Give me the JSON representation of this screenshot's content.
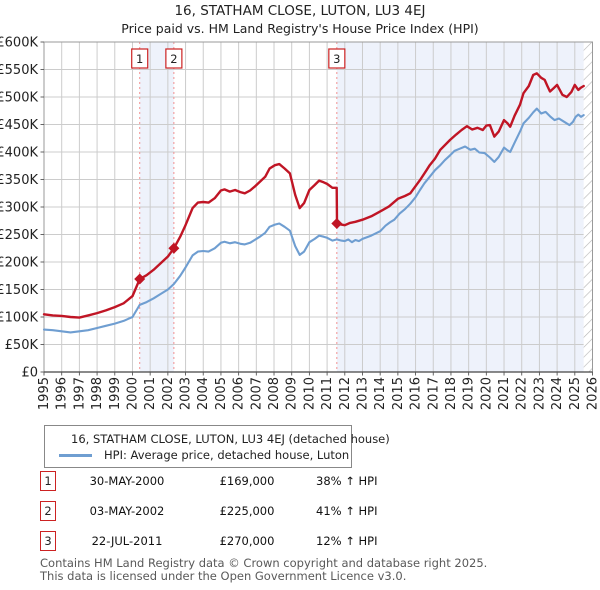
{
  "title": "16, STATHAM CLOSE, LUTON, LU3 4EJ",
  "subtitle": "Price paid vs. HM Land Registry's House Price Index (HPI)",
  "colors": {
    "property_line": "#c01525",
    "hpi_line": "#6f9ed1",
    "marker_dashed": "#f29090",
    "shade": "#eef2fb",
    "grid": "#cccccc",
    "frame": "#999999",
    "axis_bottom": "#444444",
    "hatch_line": "#b5b5b5",
    "marker_box_border": "#cc2222",
    "tick_text": "#222222"
  },
  "chart_data": {
    "type": "line",
    "title": "16, STATHAM CLOSE, LUTON, LU3 4EJ",
    "subtitle": "Price paid vs. HM Land Registry's House Price Index (HPI)",
    "unit": "GBP thousands",
    "x_range": [
      1995,
      2026
    ],
    "x_ticks": [
      1995,
      1996,
      1997,
      1998,
      1999,
      2000,
      2001,
      2002,
      2003,
      2004,
      2005,
      2006,
      2007,
      2008,
      2009,
      2010,
      2011,
      2012,
      2013,
      2014,
      2015,
      2016,
      2017,
      2018,
      2019,
      2020,
      2021,
      2022,
      2023,
      2024,
      2025,
      2026
    ],
    "ylim": [
      0,
      600
    ],
    "y_tick_step": 50,
    "y_tick_labels": [
      "£0",
      "£50K",
      "£100K",
      "£150K",
      "£200K",
      "£250K",
      "£300K",
      "£350K",
      "£400K",
      "£450K",
      "£500K",
      "£550K",
      "£600K"
    ],
    "grid": true,
    "legend_position": "below",
    "shaded_spans": [
      [
        2000.41,
        2002.34
      ],
      [
        2011.55,
        2026
      ]
    ],
    "hatch_span": [
      2025.5,
      2026
    ],
    "series": [
      {
        "name": "16, STATHAM CLOSE, LUTON, LU3 4EJ (detached house)",
        "color": "#c01525",
        "points": [
          [
            1995.0,
            105
          ],
          [
            1995.5,
            103
          ],
          [
            1996.0,
            102
          ],
          [
            1996.5,
            100
          ],
          [
            1997.0,
            99
          ],
          [
            1997.5,
            103
          ],
          [
            1998.0,
            107
          ],
          [
            1998.5,
            112
          ],
          [
            1999.0,
            118
          ],
          [
            1999.5,
            125
          ],
          [
            2000.0,
            138
          ],
          [
            2000.41,
            169
          ],
          [
            2000.8,
            176
          ],
          [
            2001.2,
            186
          ],
          [
            2001.6,
            198
          ],
          [
            2002.0,
            210
          ],
          [
            2002.34,
            225
          ],
          [
            2002.7,
            246
          ],
          [
            2003.0,
            267
          ],
          [
            2003.4,
            298
          ],
          [
            2003.7,
            308
          ],
          [
            2004.0,
            309
          ],
          [
            2004.3,
            308
          ],
          [
            2004.65,
            316
          ],
          [
            2005.0,
            330
          ],
          [
            2005.2,
            332
          ],
          [
            2005.5,
            328
          ],
          [
            2005.8,
            331
          ],
          [
            2006.1,
            327
          ],
          [
            2006.35,
            325
          ],
          [
            2006.65,
            330
          ],
          [
            2006.9,
            337
          ],
          [
            2007.2,
            346
          ],
          [
            2007.5,
            355
          ],
          [
            2007.75,
            370
          ],
          [
            2008.05,
            376
          ],
          [
            2008.3,
            378
          ],
          [
            2008.6,
            370
          ],
          [
            2008.9,
            361
          ],
          [
            2009.2,
            322
          ],
          [
            2009.45,
            298
          ],
          [
            2009.7,
            307
          ],
          [
            2010.0,
            331
          ],
          [
            2010.3,
            340
          ],
          [
            2010.55,
            348
          ],
          [
            2010.8,
            345
          ],
          [
            2011.0,
            342
          ],
          [
            2011.3,
            335
          ],
          [
            2011.54,
            335
          ],
          [
            2011.56,
            270
          ],
          [
            2011.8,
            268
          ],
          [
            2012.0,
            267
          ],
          [
            2012.3,
            271
          ],
          [
            2012.6,
            273
          ],
          [
            2013.0,
            277
          ],
          [
            2013.5,
            283
          ],
          [
            2014.0,
            292
          ],
          [
            2014.5,
            301
          ],
          [
            2015.0,
            315
          ],
          [
            2015.4,
            320
          ],
          [
            2015.7,
            325
          ],
          [
            2016.0,
            338
          ],
          [
            2016.25,
            349
          ],
          [
            2016.6,
            366
          ],
          [
            2016.8,
            376
          ],
          [
            2017.1,
            388
          ],
          [
            2017.4,
            404
          ],
          [
            2017.95,
            422
          ],
          [
            2018.3,
            432
          ],
          [
            2018.6,
            440
          ],
          [
            2018.9,
            447
          ],
          [
            2019.2,
            441
          ],
          [
            2019.5,
            444
          ],
          [
            2019.8,
            440
          ],
          [
            2020.0,
            448
          ],
          [
            2020.2,
            449
          ],
          [
            2020.45,
            428
          ],
          [
            2020.7,
            437
          ],
          [
            2021.0,
            458
          ],
          [
            2021.2,
            452
          ],
          [
            2021.35,
            446
          ],
          [
            2021.6,
            466
          ],
          [
            2021.9,
            486
          ],
          [
            2022.1,
            507
          ],
          [
            2022.4,
            520
          ],
          [
            2022.65,
            540
          ],
          [
            2022.85,
            543
          ],
          [
            2023.1,
            535
          ],
          [
            2023.3,
            531
          ],
          [
            2023.45,
            520
          ],
          [
            2023.6,
            510
          ],
          [
            2023.8,
            516
          ],
          [
            2024.0,
            522
          ],
          [
            2024.3,
            504
          ],
          [
            2024.55,
            500
          ],
          [
            2024.8,
            509
          ],
          [
            2025.0,
            522
          ],
          [
            2025.2,
            513
          ],
          [
            2025.35,
            517
          ],
          [
            2025.5,
            520
          ]
        ]
      },
      {
        "name": "HPI: Average price, detached house, Luton",
        "color": "#6f9ed1",
        "points": [
          [
            1995.0,
            77
          ],
          [
            1995.5,
            76
          ],
          [
            1996.0,
            74
          ],
          [
            1996.5,
            72
          ],
          [
            1997.0,
            74
          ],
          [
            1997.5,
            76
          ],
          [
            1998.0,
            80
          ],
          [
            1998.5,
            84
          ],
          [
            1999.0,
            88
          ],
          [
            1999.5,
            93
          ],
          [
            2000.0,
            100
          ],
          [
            2000.41,
            122
          ],
          [
            2000.8,
            127
          ],
          [
            2001.2,
            134
          ],
          [
            2001.6,
            142
          ],
          [
            2002.0,
            150
          ],
          [
            2002.34,
            160
          ],
          [
            2002.7,
            175
          ],
          [
            2003.0,
            190
          ],
          [
            2003.4,
            212
          ],
          [
            2003.7,
            219
          ],
          [
            2004.0,
            220
          ],
          [
            2004.3,
            219
          ],
          [
            2004.65,
            225
          ],
          [
            2005.0,
            235
          ],
          [
            2005.2,
            237
          ],
          [
            2005.5,
            234
          ],
          [
            2005.8,
            236
          ],
          [
            2006.1,
            233
          ],
          [
            2006.35,
            232
          ],
          [
            2006.65,
            235
          ],
          [
            2006.9,
            240
          ],
          [
            2007.2,
            246
          ],
          [
            2007.5,
            253
          ],
          [
            2007.75,
            264
          ],
          [
            2008.05,
            268
          ],
          [
            2008.3,
            270
          ],
          [
            2008.6,
            264
          ],
          [
            2008.9,
            257
          ],
          [
            2009.2,
            229
          ],
          [
            2009.45,
            213
          ],
          [
            2009.7,
            219
          ],
          [
            2010.0,
            236
          ],
          [
            2010.3,
            242
          ],
          [
            2010.55,
            248
          ],
          [
            2010.8,
            246
          ],
          [
            2011.0,
            244
          ],
          [
            2011.3,
            239
          ],
          [
            2011.55,
            241
          ],
          [
            2011.8,
            239
          ],
          [
            2012.0,
            238
          ],
          [
            2012.2,
            241
          ],
          [
            2012.4,
            236
          ],
          [
            2012.6,
            240
          ],
          [
            2012.8,
            238
          ],
          [
            2013.0,
            242
          ],
          [
            2013.5,
            248
          ],
          [
            2014.0,
            256
          ],
          [
            2014.3,
            266
          ],
          [
            2014.55,
            272
          ],
          [
            2014.8,
            277
          ],
          [
            2015.1,
            288
          ],
          [
            2015.4,
            296
          ],
          [
            2015.7,
            306
          ],
          [
            2016.0,
            318
          ],
          [
            2016.25,
            331
          ],
          [
            2016.5,
            343
          ],
          [
            2016.8,
            355
          ],
          [
            2017.1,
            367
          ],
          [
            2017.4,
            376
          ],
          [
            2017.65,
            385
          ],
          [
            2017.95,
            394
          ],
          [
            2018.2,
            402
          ],
          [
            2018.5,
            406
          ],
          [
            2018.8,
            410
          ],
          [
            2019.1,
            404
          ],
          [
            2019.35,
            406
          ],
          [
            2019.6,
            399
          ],
          [
            2019.9,
            398
          ],
          [
            2020.2,
            390
          ],
          [
            2020.45,
            382
          ],
          [
            2020.7,
            391
          ],
          [
            2021.0,
            408
          ],
          [
            2021.2,
            403
          ],
          [
            2021.35,
            400
          ],
          [
            2021.6,
            417
          ],
          [
            2021.9,
            437
          ],
          [
            2022.1,
            452
          ],
          [
            2022.4,
            462
          ],
          [
            2022.65,
            472
          ],
          [
            2022.85,
            479
          ],
          [
            2023.1,
            470
          ],
          [
            2023.35,
            473
          ],
          [
            2023.6,
            465
          ],
          [
            2023.85,
            458
          ],
          [
            2024.1,
            461
          ],
          [
            2024.4,
            455
          ],
          [
            2024.7,
            449
          ],
          [
            2024.9,
            455
          ],
          [
            2025.05,
            464
          ],
          [
            2025.2,
            468
          ],
          [
            2025.35,
            464
          ],
          [
            2025.5,
            467
          ]
        ]
      }
    ],
    "sales": [
      {
        "label": "1",
        "x": 2000.41,
        "price_k": 169
      },
      {
        "label": "2",
        "x": 2002.34,
        "price_k": 225
      },
      {
        "label": "3",
        "x": 2011.55,
        "price_k": 270
      }
    ]
  },
  "legend": {
    "items": [
      {
        "label": "16, STATHAM CLOSE, LUTON, LU3 4EJ (detached house)",
        "color": "#c01525"
      },
      {
        "label": "HPI: Average price, detached house, Luton",
        "color": "#6f9ed1"
      }
    ]
  },
  "transactions": [
    {
      "num": "1",
      "date": "30-MAY-2000",
      "price": "£169,000",
      "hpi": "38% ↑ HPI"
    },
    {
      "num": "2",
      "date": "03-MAY-2002",
      "price": "£225,000",
      "hpi": "41% ↑ HPI"
    },
    {
      "num": "3",
      "date": "22-JUL-2011",
      "price": "£270,000",
      "hpi": "12% ↑ HPI"
    }
  ],
  "footer": {
    "line1": "Contains HM Land Registry data © Crown copyright and database right 2025.",
    "line2": "This data is licensed under the Open Government Licence v3.0."
  }
}
